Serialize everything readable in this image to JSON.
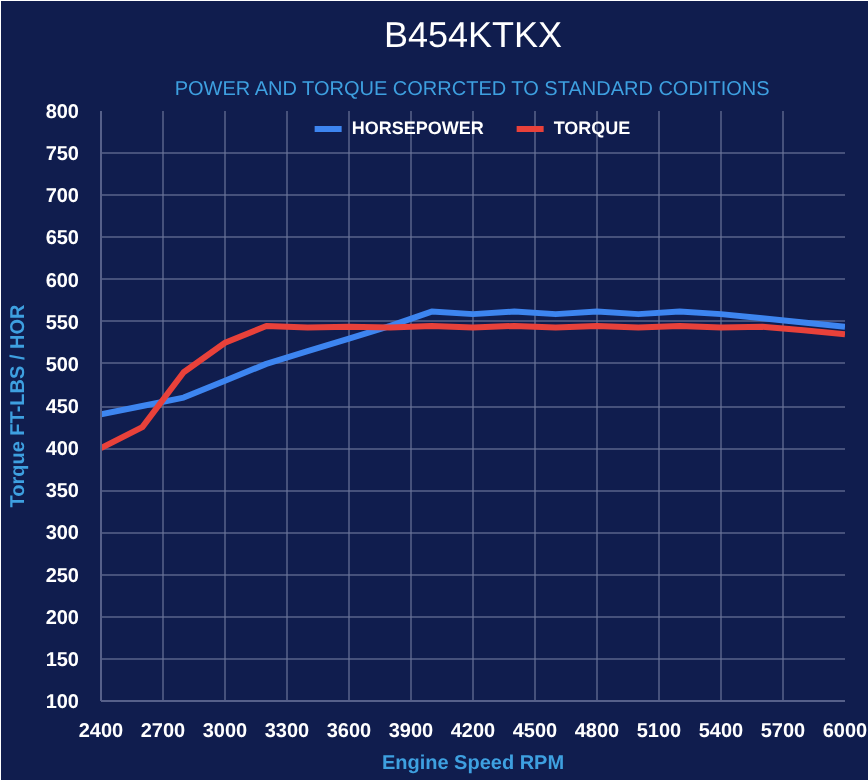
{
  "chart_data": {
    "type": "line",
    "title": "B454KTKX",
    "subtitle": "POWER AND TORQUE CORRCTED TO STANDARD CODITIONS",
    "xlabel": "Engine Speed RPM",
    "ylabel": "Torque FT-LBS / HOR",
    "x": [
      2400,
      2600,
      2800,
      3000,
      3200,
      3400,
      3600,
      3800,
      4000,
      4200,
      4400,
      4600,
      4800,
      5000,
      5200,
      5400,
      5600,
      5800,
      6000
    ],
    "series": [
      {
        "name": "HORSEPOWER",
        "color": "#3d85f0",
        "values": [
          440,
          450,
          460,
          480,
          500,
          515,
          530,
          545,
          562,
          559,
          562,
          559,
          562,
          559,
          562,
          559,
          554,
          549,
          544
        ]
      },
      {
        "name": "TORQUE",
        "color": "#e8413a",
        "values": [
          400,
          425,
          490,
          525,
          545,
          543,
          544,
          543,
          545,
          543,
          545,
          543,
          545,
          543,
          545,
          543,
          544,
          540,
          535
        ]
      }
    ],
    "xlim": [
      2400,
      6000
    ],
    "xticks": [
      2400,
      2700,
      3000,
      3300,
      3600,
      3900,
      4200,
      4500,
      4800,
      5100,
      5400,
      5700,
      6000
    ],
    "ylim": [
      100,
      800
    ],
    "yticks": [
      100,
      150,
      200,
      250,
      300,
      350,
      400,
      450,
      500,
      550,
      600,
      650,
      700,
      750,
      800
    ],
    "grid": true,
    "legend": "top",
    "marker": "none",
    "line_style": "solid"
  }
}
